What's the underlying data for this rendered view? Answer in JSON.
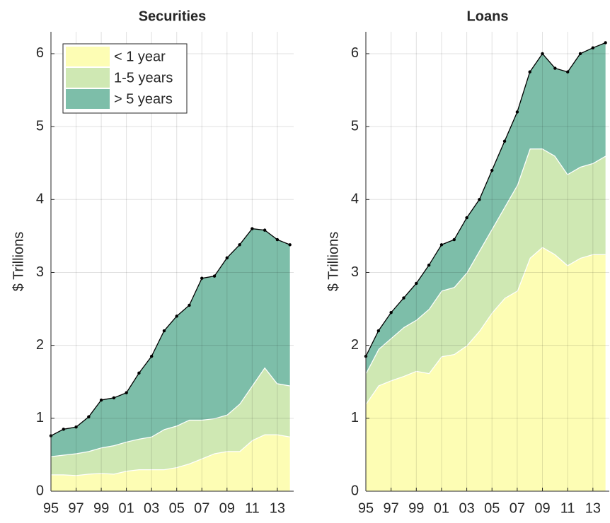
{
  "chart_data": [
    {
      "type": "stacked-area",
      "title": "Securities",
      "ylabel": "$ Trillions",
      "x": [
        1995,
        1996,
        1997,
        1998,
        1999,
        2000,
        2001,
        2002,
        2003,
        2004,
        2005,
        2006,
        2007,
        2008,
        2009,
        2010,
        2011,
        2012,
        2013,
        2014
      ],
      "series": [
        {
          "name": "< 1 year",
          "color": "#fdfdb4",
          "values": [
            0.23,
            0.23,
            0.22,
            0.24,
            0.25,
            0.24,
            0.28,
            0.3,
            0.3,
            0.3,
            0.33,
            0.38,
            0.45,
            0.52,
            0.55,
            0.55,
            0.7,
            0.78,
            0.78,
            0.75
          ]
        },
        {
          "name": "1-5 years",
          "color": "#cfe8b3",
          "values": [
            0.25,
            0.27,
            0.3,
            0.31,
            0.35,
            0.39,
            0.4,
            0.42,
            0.45,
            0.55,
            0.57,
            0.6,
            0.53,
            0.48,
            0.5,
            0.65,
            0.75,
            0.92,
            0.7,
            0.7
          ]
        },
        {
          "name": "> 5 years",
          "color": "#7dbea9",
          "values": [
            0.28,
            0.35,
            0.36,
            0.47,
            0.65,
            0.65,
            0.67,
            0.9,
            1.1,
            1.35,
            1.5,
            1.57,
            1.94,
            1.95,
            2.15,
            2.18,
            2.15,
            1.88,
            1.97,
            1.93
          ]
        }
      ],
      "xlim": [
        1995,
        2014.3
      ],
      "ylim": [
        0,
        6.3
      ],
      "xticks": [
        {
          "value": 1995,
          "label": "95"
        },
        {
          "value": 1997,
          "label": "97"
        },
        {
          "value": 1999,
          "label": "99"
        },
        {
          "value": 2001,
          "label": "01"
        },
        {
          "value": 2003,
          "label": "03"
        },
        {
          "value": 2005,
          "label": "05"
        },
        {
          "value": 2007,
          "label": "07"
        },
        {
          "value": 2009,
          "label": "09"
        },
        {
          "value": 2011,
          "label": "11"
        },
        {
          "value": 2013,
          "label": "13"
        }
      ],
      "yticks": [
        0,
        1,
        2,
        3,
        4,
        5,
        6
      ],
      "grid": true,
      "legend": "upper left"
    },
    {
      "type": "stacked-area",
      "title": "Loans",
      "ylabel": "$ Trillions",
      "x": [
        1995,
        1996,
        1997,
        1998,
        1999,
        2000,
        2001,
        2002,
        2003,
        2004,
        2005,
        2006,
        2007,
        2008,
        2009,
        2010,
        2011,
        2012,
        2013,
        2014
      ],
      "series": [
        {
          "color": "#fdfdb4",
          "values": [
            1.2,
            1.45,
            1.52,
            1.58,
            1.65,
            1.62,
            1.85,
            1.88,
            2.0,
            2.2,
            2.45,
            2.65,
            2.75,
            3.2,
            3.35,
            3.25,
            3.1,
            3.2,
            3.25,
            3.25
          ]
        },
        {
          "color": "#cfe8b3",
          "values": [
            0.42,
            0.5,
            0.58,
            0.67,
            0.7,
            0.88,
            0.9,
            0.92,
            1.0,
            1.1,
            1.15,
            1.25,
            1.45,
            1.5,
            1.35,
            1.35,
            1.25,
            1.25,
            1.25,
            1.35
          ]
        },
        {
          "color": "#7dbea9",
          "values": [
            0.23,
            0.25,
            0.35,
            0.4,
            0.5,
            0.6,
            0.63,
            0.65,
            0.75,
            0.7,
            0.8,
            0.9,
            1.0,
            1.05,
            1.3,
            1.2,
            1.4,
            1.55,
            1.58,
            1.55
          ]
        }
      ],
      "xlim": [
        1995,
        2014.3
      ],
      "ylim": [
        0,
        6.3
      ],
      "xticks": [
        {
          "value": 1995,
          "label": "95"
        },
        {
          "value": 1997,
          "label": "97"
        },
        {
          "value": 1999,
          "label": "99"
        },
        {
          "value": 2001,
          "label": "01"
        },
        {
          "value": 2003,
          "label": "03"
        },
        {
          "value": 2005,
          "label": "05"
        },
        {
          "value": 2007,
          "label": "07"
        },
        {
          "value": 2009,
          "label": "09"
        },
        {
          "value": 2011,
          "label": "11"
        },
        {
          "value": 2013,
          "label": "13"
        }
      ],
      "yticks": [
        0,
        1,
        2,
        3,
        4,
        5,
        6
      ],
      "grid": true,
      "legend": false
    }
  ]
}
